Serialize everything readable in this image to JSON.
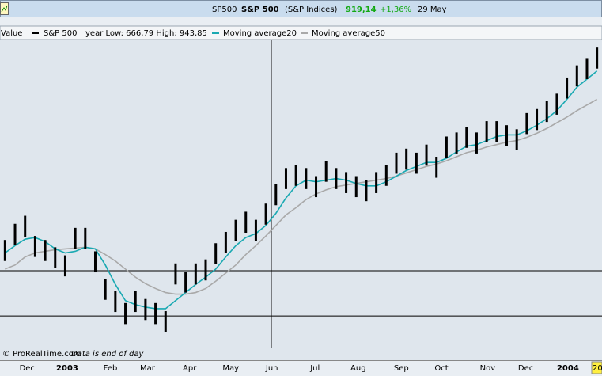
{
  "header": {
    "symbol": "SP500",
    "name": "S&P 500",
    "exchange": "(S&P Indices)",
    "price": "919,14",
    "change": "+1,36%",
    "date": "29 May"
  },
  "legend": {
    "value_label": "Value",
    "year_range": "year Low: 666,79 High: 943,85"
  },
  "footer": {
    "copyright": "© ProRealTime.com",
    "note": "Data is end of day",
    "corner": "20"
  },
  "chart_data": {
    "type": "candlestick",
    "xlim": [
      -0.5,
      59.5
    ],
    "xticks": [
      {
        "value": 2.2,
        "label": "Dec"
      },
      {
        "value": 6.2,
        "label": "2003"
      },
      {
        "value": 10.5,
        "label": "Feb"
      },
      {
        "value": 14.2,
        "label": "Mar"
      },
      {
        "value": 18.4,
        "label": "Apr"
      },
      {
        "value": 22.5,
        "label": "May"
      },
      {
        "value": 26.6,
        "label": "Jun"
      },
      {
        "value": 30.9,
        "label": "Jul"
      },
      {
        "value": 35.2,
        "label": "Aug"
      },
      {
        "value": 39.5,
        "label": "Sep"
      },
      {
        "value": 43.5,
        "label": "Oct"
      },
      {
        "value": 48.1,
        "label": "Nov"
      },
      {
        "value": 51.9,
        "label": "Dec"
      },
      {
        "value": 56.1,
        "label": "2004"
      }
    ],
    "ylim": [
      788,
      1168
    ],
    "crosshair": {
      "x": 26.54,
      "y": [
        884,
        828
      ]
    },
    "series": [
      {
        "name": "S&P 500",
        "color": "#000000",
        "high": [
          922,
          942,
          952,
          927,
          922,
          913,
          903,
          937,
          937,
          908,
          874,
          859,
          844,
          859,
          849,
          844,
          834,
          893,
          883,
          893,
          898,
          918,
          932,
          947,
          957,
          947,
          967,
          991,
          1011,
          1015,
          1011,
          1001,
          1020,
          1011,
          1006,
          1001,
          996,
          1006,
          1015,
          1030,
          1035,
          1030,
          1040,
          1025,
          1050,
          1055,
          1062,
          1055,
          1069,
          1069,
          1064,
          1059,
          1079,
          1084,
          1094,
          1103,
          1123,
          1138,
          1147,
          1160
        ],
        "low": [
          896,
          916,
          926,
          901,
          896,
          887,
          877,
          911,
          911,
          882,
          848,
          833,
          818,
          833,
          823,
          818,
          808,
          867,
          857,
          867,
          872,
          892,
          906,
          921,
          931,
          921,
          941,
          965,
          985,
          989,
          985,
          975,
          994,
          985,
          980,
          975,
          970,
          980,
          989,
          1004,
          1009,
          1004,
          1014,
          999,
          1024,
          1029,
          1036,
          1029,
          1043,
          1043,
          1038,
          1033,
          1053,
          1058,
          1068,
          1077,
          1097,
          1112,
          1121,
          1134
        ]
      },
      {
        "name": "Moving average20",
        "color": "#1aa9b2",
        "values": [
          906,
          915,
          923,
          925,
          920,
          911,
          906,
          908,
          913,
          911,
          891,
          867,
          847,
          842,
          839,
          837,
          837,
          847,
          857,
          867,
          876,
          886,
          901,
          915,
          925,
          930,
          940,
          955,
          974,
          989,
          996,
          994,
          996,
          998,
          996,
          992,
          989,
          989,
          994,
          1001,
          1008,
          1013,
          1018,
          1018,
          1023,
          1031,
          1038,
          1040,
          1045,
          1050,
          1052,
          1052,
          1057,
          1064,
          1072,
          1082,
          1096,
          1111,
          1121,
          1131
        ]
      },
      {
        "name": "Moving average50",
        "color": "#a9a9a9",
        "values": [
          886,
          891,
          901,
          906,
          908,
          910,
          911,
          912,
          913,
          911,
          904,
          896,
          886,
          876,
          868,
          862,
          857,
          855,
          855,
          857,
          862,
          871,
          881,
          891,
          904,
          915,
          927,
          940,
          953,
          962,
          972,
          979,
          984,
          988,
          990,
          992,
          994,
          996,
          998,
          1001,
          1005,
          1009,
          1013,
          1016,
          1020,
          1025,
          1030,
          1033,
          1037,
          1040,
          1043,
          1045,
          1049,
          1054,
          1060,
          1067,
          1074,
          1082,
          1089,
          1096
        ]
      }
    ]
  }
}
